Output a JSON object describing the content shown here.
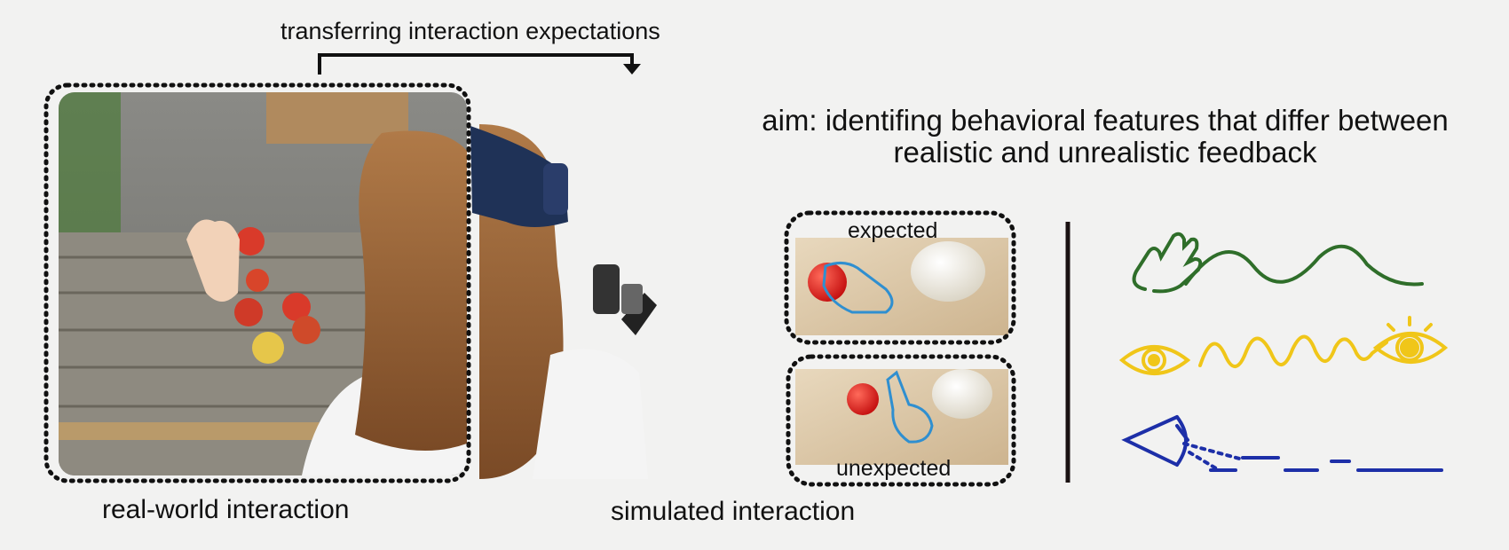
{
  "header": {
    "arrow_label": "transferring interaction expectations",
    "aim": "aim: identifing behavioral features that differ between realistic and unrealistic feedback"
  },
  "labels": {
    "real_world": "real-world interaction",
    "simulated": "simulated interaction"
  },
  "panels": {
    "expected": "expected",
    "unexpected": "unexpected"
  },
  "features": [
    {
      "icon": "hand-icon",
      "color": "#2f6e2a"
    },
    {
      "icon": "eye-icon",
      "color": "#f0c619"
    },
    {
      "icon": "eye-side-icon",
      "color": "#1d2fa8"
    }
  ],
  "colors": {
    "frame": "#111111",
    "divider": "#1a1212",
    "apple": "#d93a2a",
    "ball": "#e11b1b",
    "hand_outline": "#2f8fd0",
    "wood": "#d8c2a0",
    "hair": "#9a6438",
    "headset": "#1f3257"
  }
}
